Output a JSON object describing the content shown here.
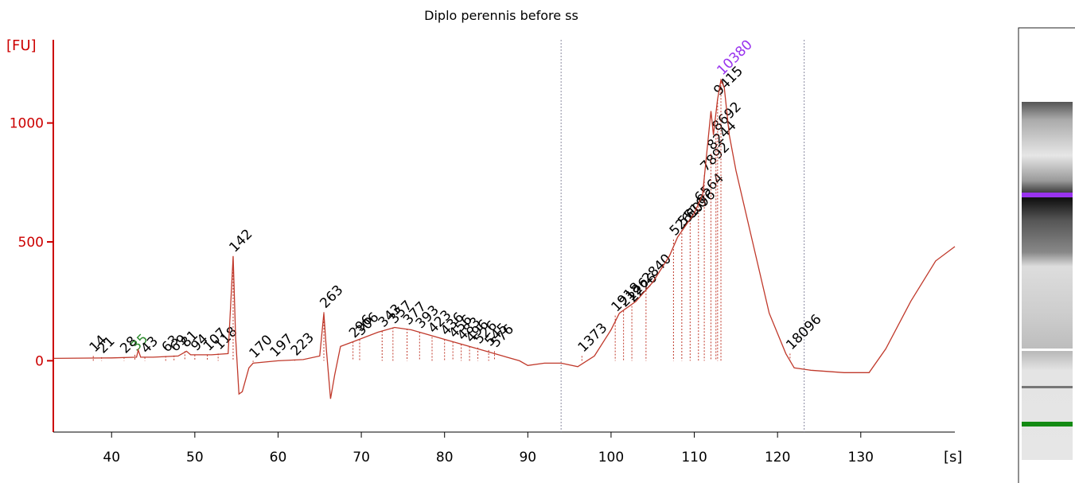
{
  "chart_data": {
    "type": "electropherogram",
    "title": "Diplo perennis before ss",
    "ylabel": "[FU]",
    "xlabel": "[s]",
    "axis_color": "#cc0000",
    "trace_color": "#c0392b",
    "label_color": "#000000",
    "marker_color": "#8a8aa0",
    "xlim": [
      33,
      141.3
    ],
    "ylim": [
      -300,
      1350
    ],
    "xticks": [
      40,
      50,
      60,
      70,
      80,
      90,
      100,
      110,
      120,
      130
    ],
    "yticks": [
      0,
      500,
      1000
    ],
    "markers": [
      94,
      123.2
    ],
    "trace": {
      "x": [
        33,
        40,
        43,
        43.2,
        43.5,
        45,
        48,
        49,
        49.5,
        52,
        54,
        54.4,
        54.6,
        54.9,
        55.3,
        55.7,
        56.5,
        57,
        60,
        63,
        65,
        65.5,
        65.8,
        66.3,
        66.8,
        67.5,
        69,
        72,
        74,
        76,
        80,
        84,
        87,
        89,
        90,
        92,
        94,
        96,
        98,
        100,
        101,
        103,
        105,
        107,
        108,
        110,
        111,
        112,
        112.3,
        112.8,
        113.2,
        113.6,
        114.2,
        115,
        117,
        119,
        121,
        122,
        124,
        128,
        131,
        133,
        136,
        139,
        141.3
      ],
      "y": [
        10,
        12,
        15,
        45,
        15,
        15,
        20,
        40,
        25,
        25,
        30,
        300,
        440,
        100,
        -140,
        -130,
        -30,
        -10,
        0,
        5,
        20,
        200,
        50,
        -160,
        -60,
        60,
        80,
        120,
        140,
        130,
        90,
        50,
        20,
        0,
        -20,
        -10,
        -10,
        -25,
        20,
        130,
        200,
        250,
        330,
        440,
        520,
        620,
        700,
        1050,
        950,
        1100,
        1180,
        1150,
        950,
        800,
        500,
        200,
        30,
        -30,
        -40,
        -50,
        -50,
        50,
        250,
        420,
        480
      ]
    },
    "peaks": [
      {
        "x": 37.8,
        "y": 20,
        "label": "14"
      },
      {
        "x": 38.8,
        "y": 15,
        "label": "21"
      },
      {
        "x": 41.5,
        "y": 15,
        "label": "28"
      },
      {
        "x": 42.8,
        "y": 25,
        "label": "35",
        "color": "#2e8b2e"
      },
      {
        "x": 44,
        "y": 15,
        "label": "43"
      },
      {
        "x": 46.5,
        "y": 20,
        "label": "63"
      },
      {
        "x": 47.5,
        "y": 22,
        "label": "69"
      },
      {
        "x": 48.8,
        "y": 40,
        "label": "81"
      },
      {
        "x": 50,
        "y": 25,
        "label": "94"
      },
      {
        "x": 51.5,
        "y": 25,
        "label": "107"
      },
      {
        "x": 52.8,
        "y": 30,
        "label": "118"
      },
      {
        "x": 54.6,
        "y": 440,
        "label": "142"
      },
      {
        "x": 57,
        "y": -5,
        "label": "170"
      },
      {
        "x": 59.5,
        "y": 0,
        "label": "197"
      },
      {
        "x": 62,
        "y": 5,
        "label": "223"
      },
      {
        "x": 65.5,
        "y": 205,
        "label": "263"
      },
      {
        "x": 69,
        "y": 80,
        "label": "296"
      },
      {
        "x": 69.8,
        "y": 90,
        "label": "306"
      },
      {
        "x": 72.5,
        "y": 125,
        "label": "343"
      },
      {
        "x": 73.8,
        "y": 140,
        "label": "357"
      },
      {
        "x": 75.5,
        "y": 135,
        "label": "377"
      },
      {
        "x": 77,
        "y": 120,
        "label": "393"
      },
      {
        "x": 78.5,
        "y": 100,
        "label": "423"
      },
      {
        "x": 80,
        "y": 90,
        "label": "436"
      },
      {
        "x": 81,
        "y": 80,
        "label": "456"
      },
      {
        "x": 82,
        "y": 70,
        "label": "483"
      },
      {
        "x": 83,
        "y": 60,
        "label": "496"
      },
      {
        "x": 84,
        "y": 55,
        "label": "526"
      },
      {
        "x": 85.3,
        "y": 45,
        "label": "545"
      },
      {
        "x": 86,
        "y": 40,
        "label": "576"
      },
      {
        "x": 96.5,
        "y": 20,
        "label": "1373"
      },
      {
        "x": 100.5,
        "y": 190,
        "label": "1918"
      },
      {
        "x": 101.5,
        "y": 210,
        "label": "2126"
      },
      {
        "x": 102.5,
        "y": 230,
        "label": "2226"
      },
      {
        "x": 104.2,
        "y": 310,
        "label": "2840"
      },
      {
        "x": 107.5,
        "y": 510,
        "label": "5261"
      },
      {
        "x": 108.5,
        "y": 550,
        "label": "5510"
      },
      {
        "x": 109.5,
        "y": 580,
        "label": "6096"
      },
      {
        "x": 110.5,
        "y": 650,
        "label": "6564"
      },
      {
        "x": 111.2,
        "y": 780,
        "label": "7892"
      },
      {
        "x": 112,
        "y": 870,
        "label": "8244"
      },
      {
        "x": 112.6,
        "y": 950,
        "label": "8692"
      },
      {
        "x": 112.8,
        "y": 1100,
        "label": "9415"
      },
      {
        "x": 113.2,
        "y": 1185,
        "label": "10380",
        "color": "#9933ee"
      },
      {
        "x": 121.5,
        "y": 30,
        "label": "18096"
      }
    ]
  }
}
